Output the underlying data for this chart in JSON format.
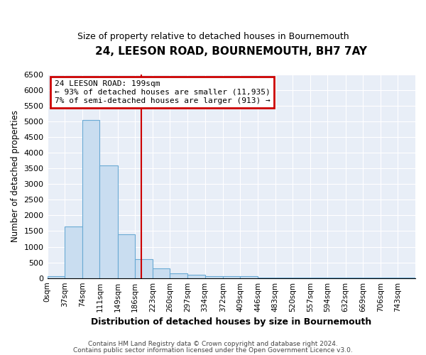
{
  "title": "24, LEESON ROAD, BOURNEMOUTH, BH7 7AY",
  "subtitle": "Size of property relative to detached houses in Bournemouth",
  "xlabel": "Distribution of detached houses by size in Bournemouth",
  "ylabel": "Number of detached properties",
  "bin_edges": [
    0,
    37,
    74,
    111,
    149,
    186,
    223,
    260,
    297,
    334,
    372,
    409,
    446,
    483,
    520,
    557,
    594,
    632,
    669,
    706,
    743,
    780
  ],
  "bin_labels": [
    "0sqm",
    "37sqm",
    "74sqm",
    "111sqm",
    "149sqm",
    "186sqm",
    "223sqm",
    "260sqm",
    "297sqm",
    "334sqm",
    "372sqm",
    "409sqm",
    "446sqm",
    "483sqm",
    "520sqm",
    "557sqm",
    "594sqm",
    "632sqm",
    "669sqm",
    "706sqm",
    "743sqm"
  ],
  "bar_heights": [
    70,
    1650,
    5050,
    3600,
    1400,
    600,
    300,
    150,
    100,
    70,
    50,
    50,
    5,
    5,
    5,
    5,
    5,
    5,
    5,
    5,
    5
  ],
  "bar_color": "#c9ddf0",
  "bar_edge_color": "#6aaad4",
  "red_line_x": 199,
  "ylim": [
    0,
    6500
  ],
  "yticks": [
    0,
    500,
    1000,
    1500,
    2000,
    2500,
    3000,
    3500,
    4000,
    4500,
    5000,
    5500,
    6000,
    6500
  ],
  "annotation_title": "24 LEESON ROAD: 199sqm",
  "annotation_line1": "← 93% of detached houses are smaller (11,935)",
  "annotation_line2": "7% of semi-detached houses are larger (913) →",
  "annotation_box_color": "#ffffff",
  "annotation_box_edge": "#cc0000",
  "footer1": "Contains HM Land Registry data © Crown copyright and database right 2024.",
  "footer2": "Contains public sector information licensed under the Open Government Licence v3.0.",
  "background_color": "#ffffff",
  "plot_bg_color": "#e8eef7",
  "grid_color": "#ffffff"
}
